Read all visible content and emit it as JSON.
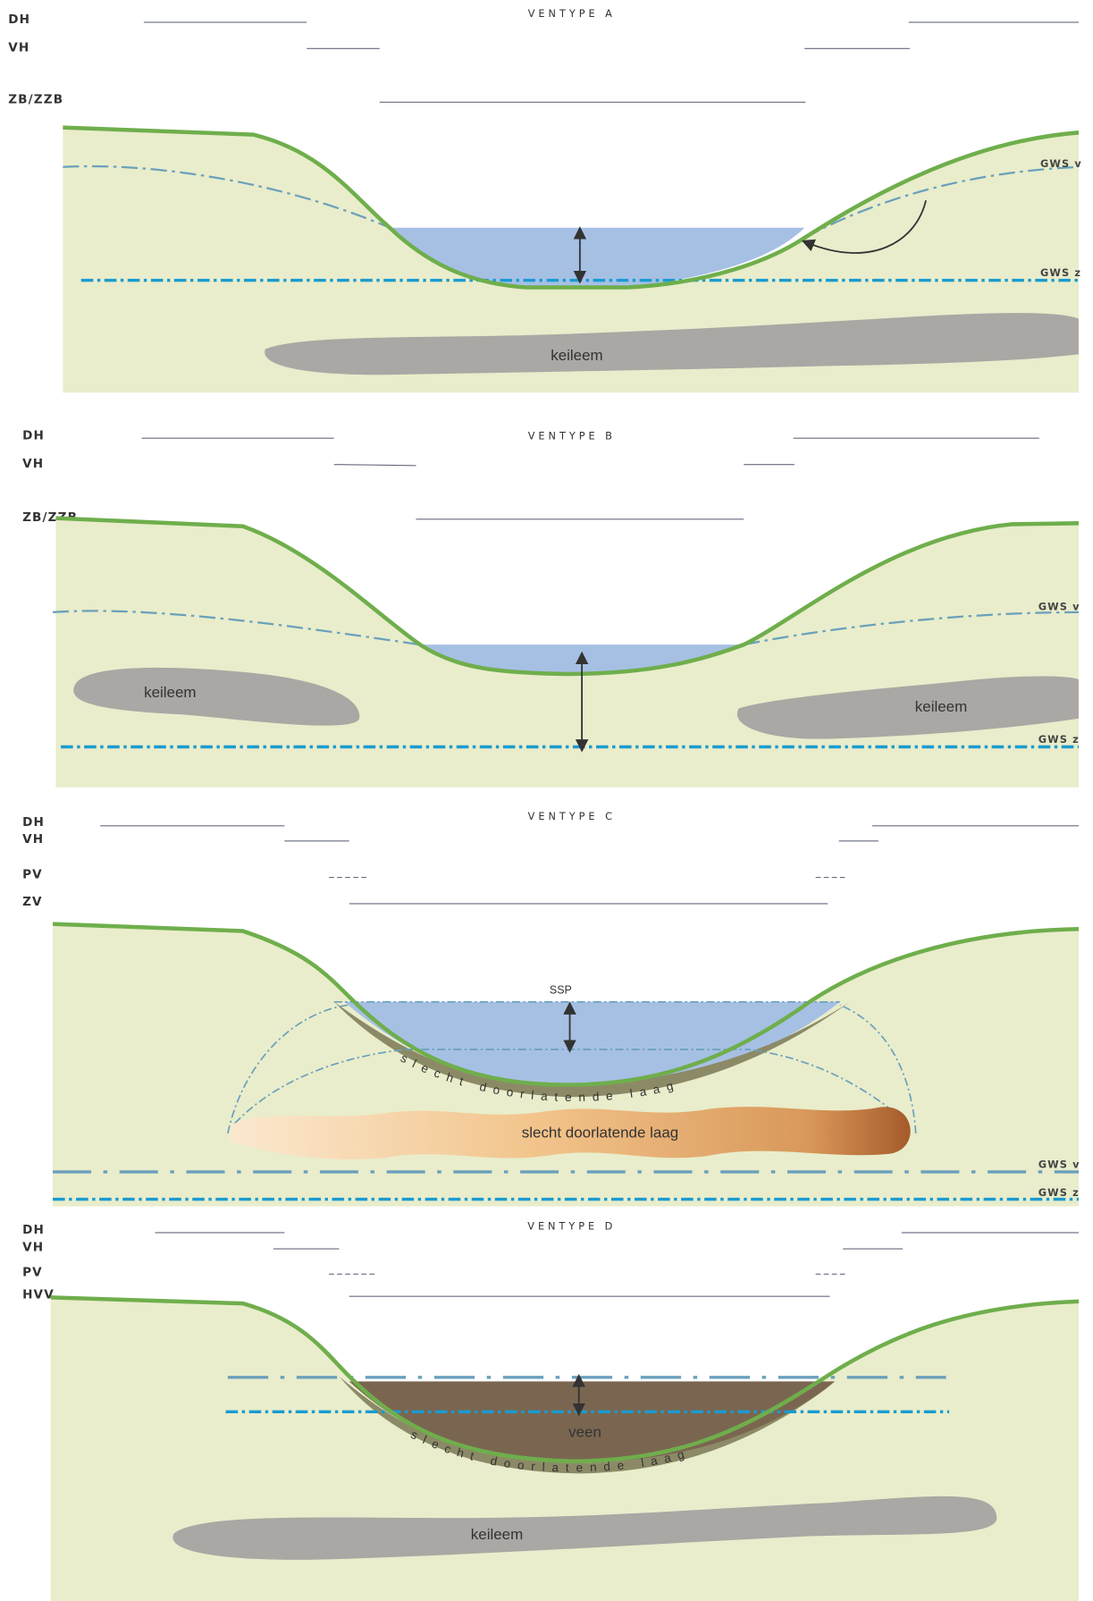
{
  "panels": [
    {
      "title": "VENTYPE A",
      "levels": [
        "DH",
        "VH",
        "ZB/ZZB"
      ],
      "gws": [
        "GWS v",
        "GWS z"
      ],
      "labels": [
        "keileem"
      ]
    },
    {
      "title": "VENTYPE B",
      "levels": [
        "DH",
        "VH",
        "ZB/ZZB"
      ],
      "gws": [
        "GWS v",
        "GWS z"
      ],
      "labels": [
        "keileem",
        "keileem"
      ]
    },
    {
      "title": "VENTYPE C",
      "levels": [
        "DH",
        "VH",
        "PV",
        "ZV"
      ],
      "gws": [
        "GWS v",
        "GWS z"
      ],
      "labels": [
        "SSP",
        "slecht doorlatende laag",
        "slecht doorlatende laag"
      ]
    },
    {
      "title": "VENTYPE D",
      "levels": [
        "DH",
        "VH",
        "PV",
        "HVV"
      ],
      "labels": [
        "veen",
        "slecht doorlatende laag",
        "keileem"
      ]
    }
  ]
}
